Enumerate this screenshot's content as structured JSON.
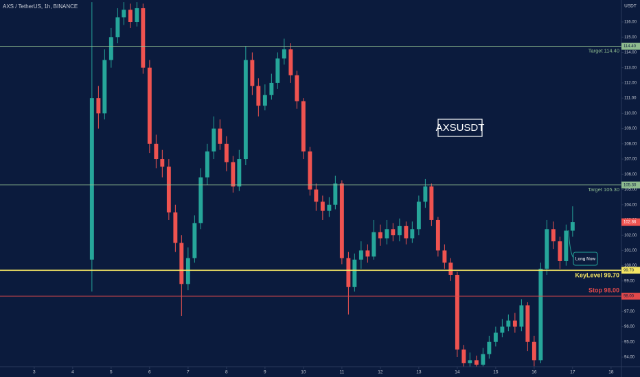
{
  "chart_data": {
    "type": "candlestick",
    "title": "AXS / TetherUS, 1h, BINANCE",
    "y_axis_label": "USDT",
    "annotations": [
      "AXSUSDT",
      "Long Now"
    ],
    "last_price": 102.86,
    "up_color": "#26a69a",
    "down_color": "#ef5350",
    "xlim": [
      2.11,
      18.27
    ],
    "ylim": [
      93.37,
      117.44
    ],
    "xticks": [
      3,
      4,
      5,
      6,
      7,
      8,
      9,
      10,
      11,
      12,
      13,
      14,
      15,
      16,
      17,
      18
    ],
    "yticks": [
      {
        "value": 94,
        "label": "94.00"
      },
      {
        "value": 95,
        "label": "95.00"
      },
      {
        "value": 96,
        "label": "96.00"
      },
      {
        "value": 97,
        "label": "97.00"
      },
      {
        "value": 98,
        "label": "98.00"
      },
      {
        "value": 99,
        "label": "99.00"
      },
      {
        "value": 100,
        "label": "100.00"
      },
      {
        "value": 101,
        "label": "101.00"
      },
      {
        "value": 102,
        "label": "102.00"
      },
      {
        "value": 103,
        "label": "103.00"
      },
      {
        "value": 104,
        "label": "104.00"
      },
      {
        "value": 105,
        "label": "105.00"
      },
      {
        "value": 106,
        "label": "106.00"
      },
      {
        "value": 107,
        "label": "107.00"
      },
      {
        "value": 108,
        "label": "108.00"
      },
      {
        "value": 109,
        "label": "109.00"
      },
      {
        "value": 110,
        "label": "110.00"
      },
      {
        "value": 111,
        "label": "111.00"
      },
      {
        "value": 112,
        "label": "112.00"
      },
      {
        "value": 113,
        "label": "113.00"
      },
      {
        "value": 114,
        "label": "114.00"
      },
      {
        "value": 115,
        "label": "115.00"
      },
      {
        "value": 116,
        "label": "116.00"
      }
    ],
    "hlines": [
      {
        "value": 114.4,
        "label": "114.40",
        "text": "Target 114.40",
        "color": "#8fbc8f"
      },
      {
        "value": 105.3,
        "label": "105.30",
        "text": "Target 105.30",
        "color": "#8fbc8f"
      },
      {
        "value": 99.7,
        "label": "99.70",
        "text": "KeyLevel 99.70",
        "color": "#f5e663"
      },
      {
        "value": 98,
        "label": "98.00",
        "text": "Stop 98.00",
        "color": "#e0484a"
      }
    ],
    "x": [
      4.5,
      4.67,
      4.83,
      5,
      5.17,
      5.33,
      5.5,
      5.67,
      5.83,
      6,
      6.17,
      6.33,
      6.5,
      6.67,
      6.83,
      7,
      7.17,
      7.33,
      7.5,
      7.67,
      7.83,
      8,
      8.17,
      8.33,
      8.5,
      8.67,
      8.83,
      9,
      9.17,
      9.33,
      9.5,
      9.67,
      9.83,
      10,
      10.17,
      10.33,
      10.5,
      10.67,
      10.83,
      11,
      11.17,
      11.33,
      11.5,
      11.67,
      11.83,
      12,
      12.17,
      12.33,
      12.5,
      12.67,
      12.83,
      13,
      13.17,
      13.33,
      13.5,
      13.67,
      13.83,
      14,
      14.17,
      14.33,
      14.5,
      14.67,
      14.83,
      15,
      15.17,
      15.33,
      15.5,
      15.67,
      15.83,
      16,
      16.17,
      16.33,
      16.5,
      16.67,
      16.83,
      17
    ],
    "open": [
      100.4,
      111.0,
      110.0,
      113.5,
      115.0,
      116.3,
      116.8,
      116.0,
      116.9,
      113.0,
      108.0,
      107.0,
      106.5,
      103.5,
      101.5,
      98.8,
      100.5,
      102.8,
      105.8,
      107.5,
      109.0,
      108.0,
      106.8,
      105.2,
      107.0,
      113.5,
      111.8,
      110.5,
      111.2,
      112.0,
      113.6,
      114.2,
      112.5,
      110.8,
      107.5,
      105.0,
      104.2,
      103.6,
      104.0,
      105.4,
      100.5,
      98.6,
      100.4,
      101.0,
      100.6,
      102.2,
      101.8,
      102.4,
      102.0,
      102.6,
      101.8,
      102.4,
      104.2,
      105.2,
      103.0,
      101.0,
      100.2,
      99.4,
      94.5,
      93.6,
      93.8,
      93.5,
      94.2,
      95.0,
      95.6,
      96.0,
      96.4,
      96.0,
      97.4,
      95.0,
      93.8,
      99.8,
      102.4,
      101.6,
      100.3,
      102.3
    ],
    "high": [
      117.3,
      111.8,
      114.2,
      115.6,
      116.9,
      117.3,
      117.2,
      117.3,
      117.2,
      113.5,
      108.6,
      107.6,
      107.0,
      104.0,
      102.0,
      101.2,
      103.3,
      106.4,
      108.0,
      109.8,
      109.6,
      108.5,
      107.2,
      107.6,
      114.4,
      114.0,
      112.3,
      111.9,
      112.6,
      114.0,
      114.9,
      114.6,
      112.8,
      111.0,
      107.8,
      105.4,
      104.6,
      104.5,
      105.9,
      105.6,
      100.9,
      100.8,
      101.6,
      101.4,
      103.0,
      102.7,
      103.0,
      102.8,
      103.1,
      102.9,
      102.9,
      104.6,
      105.7,
      105.4,
      103.2,
      101.4,
      100.5,
      99.6,
      94.8,
      94.3,
      94.1,
      94.6,
      95.4,
      96.0,
      96.5,
      96.8,
      96.9,
      97.8,
      97.6,
      95.4,
      100.2,
      103.0,
      102.9,
      101.9,
      102.7,
      103.9
    ],
    "low": [
      98.3,
      109.0,
      109.6,
      113.0,
      114.6,
      115.8,
      115.6,
      115.7,
      112.6,
      107.4,
      106.4,
      105.8,
      103.0,
      100.9,
      96.7,
      98.4,
      100.2,
      102.4,
      105.3,
      107.0,
      107.6,
      106.2,
      104.8,
      104.9,
      106.6,
      111.2,
      109.8,
      110.2,
      110.9,
      111.6,
      113.2,
      112.0,
      110.3,
      107.0,
      104.6,
      103.6,
      103.0,
      103.2,
      103.7,
      100.1,
      96.8,
      98.3,
      99.8,
      100.2,
      100.4,
      101.3,
      101.4,
      101.6,
      101.6,
      101.4,
      101.5,
      102.0,
      103.8,
      102.6,
      100.6,
      99.8,
      99.0,
      94.0,
      93.2,
      93.3,
      93.2,
      93.4,
      93.9,
      94.7,
      95.3,
      95.7,
      95.6,
      95.7,
      94.4,
      93.4,
      93.6,
      99.4,
      101.1,
      99.8,
      100.0,
      101.9
    ],
    "close": [
      111.0,
      110.0,
      113.5,
      115.0,
      116.3,
      116.8,
      116.0,
      116.9,
      113.0,
      108.0,
      107.0,
      106.5,
      103.5,
      101.5,
      98.8,
      100.5,
      102.8,
      105.8,
      107.5,
      109.0,
      108.0,
      106.8,
      105.2,
      107.0,
      113.5,
      111.8,
      110.5,
      111.2,
      112.0,
      113.6,
      114.2,
      112.5,
      110.8,
      107.5,
      105.0,
      104.2,
      103.6,
      104.0,
      105.4,
      100.5,
      98.6,
      100.4,
      101.0,
      100.6,
      102.2,
      101.8,
      102.4,
      102.0,
      102.6,
      101.8,
      102.4,
      104.2,
      105.2,
      103.0,
      101.0,
      100.2,
      99.4,
      94.5,
      93.6,
      93.8,
      93.5,
      94.2,
      95.0,
      95.6,
      96.0,
      96.4,
      96.0,
      97.4,
      95.0,
      93.8,
      99.8,
      102.4,
      101.6,
      100.3,
      102.3,
      102.86
    ]
  }
}
